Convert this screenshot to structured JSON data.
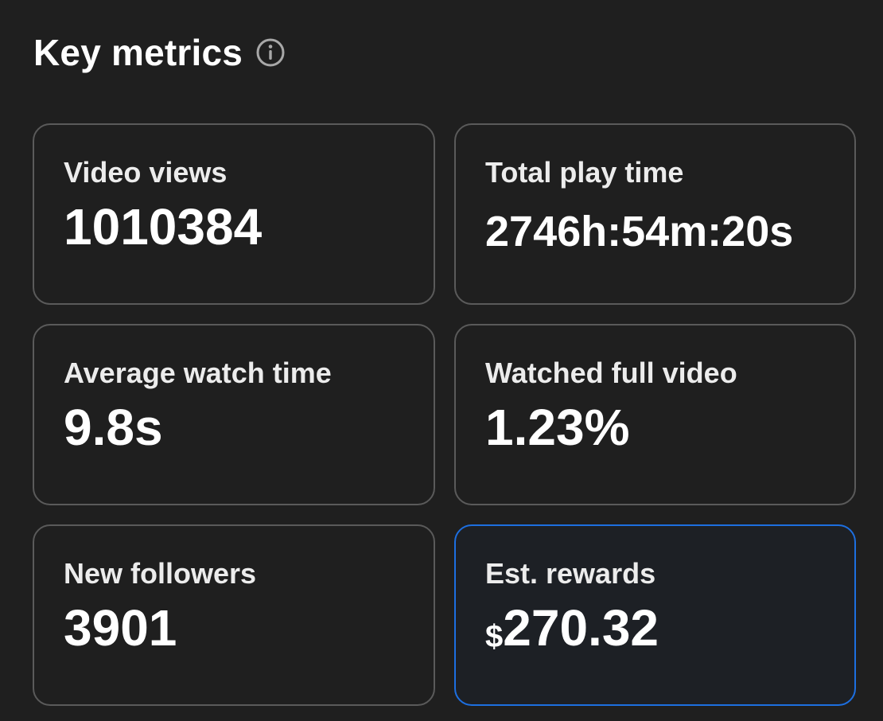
{
  "header": {
    "title": "Key metrics",
    "info_icon": "info-circle-icon"
  },
  "metrics": [
    {
      "label": "Video views",
      "value": "1010384"
    },
    {
      "label": "Total play time",
      "value": "2746h:54m:20s"
    },
    {
      "label": "Average watch time",
      "value": "9.8s"
    },
    {
      "label": "Watched full video",
      "value": "1.23%"
    },
    {
      "label": "New followers",
      "value": "3901"
    },
    {
      "label": "Est. rewards",
      "currency": "$",
      "value": "270.32"
    }
  ],
  "colors": {
    "background": "#1f1f1f",
    "card_border": "#5a5a5a",
    "highlight_border": "#1d6fe0",
    "text": "#ffffff"
  }
}
